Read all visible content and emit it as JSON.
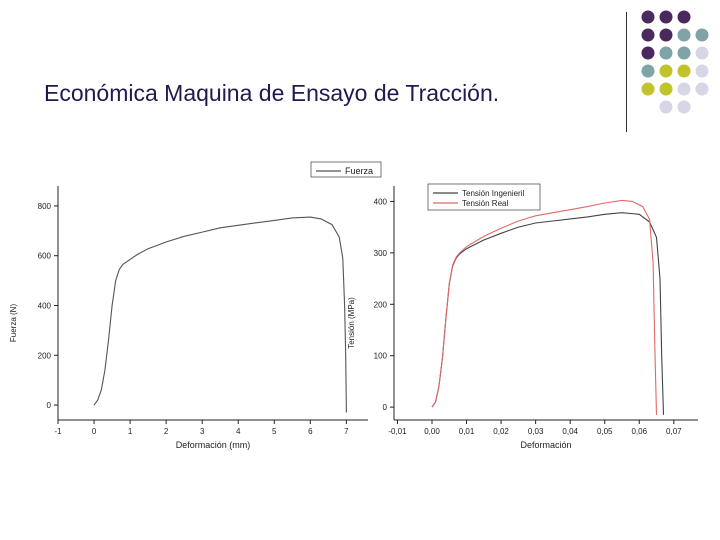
{
  "slide": {
    "title": "Económica Maquina de Ensayo de Tracción."
  },
  "decoration": {
    "dot_colors": {
      "purple": "#4a2a5e",
      "teal": "#7fa3a6",
      "olive": "#c2c22a",
      "lavender": "#d6d6e6"
    },
    "dot_grid": [
      [
        "purple",
        "purple",
        "purple",
        "none"
      ],
      [
        "purple",
        "purple",
        "teal",
        "teal"
      ],
      [
        "purple",
        "teal",
        "teal",
        "lavender"
      ],
      [
        "teal",
        "olive",
        "olive",
        "lavender"
      ],
      [
        "olive",
        "olive",
        "lavender",
        "lavender"
      ],
      [
        "none",
        "lavender",
        "lavender",
        "none"
      ]
    ]
  },
  "chart_data": [
    {
      "type": "line",
      "xlabel": "Deformación (mm)",
      "ylabel": "Fuerza (N)",
      "xlim": [
        -1,
        7.6
      ],
      "ylim": [
        -60,
        880
      ],
      "xticks": [
        "-1",
        "0",
        "1",
        "2",
        "3",
        "4",
        "5",
        "6",
        "7"
      ],
      "yticks": [
        "0",
        "200",
        "400",
        "600",
        "800"
      ],
      "legend": "top-right",
      "series": [
        {
          "name": "Fuerza",
          "color": "#555555",
          "points": [
            [
              0,
              0
            ],
            [
              0.1,
              20
            ],
            [
              0.2,
              60
            ],
            [
              0.3,
              140
            ],
            [
              0.4,
              260
            ],
            [
              0.5,
              400
            ],
            [
              0.6,
              500
            ],
            [
              0.7,
              545
            ],
            [
              0.8,
              565
            ],
            [
              1.0,
              585
            ],
            [
              1.2,
              605
            ],
            [
              1.5,
              628
            ],
            [
              2.0,
              655
            ],
            [
              2.5,
              678
            ],
            [
              3.0,
              695
            ],
            [
              3.5,
              712
            ],
            [
              4.0,
              722
            ],
            [
              4.5,
              732
            ],
            [
              5.0,
              742
            ],
            [
              5.5,
              752
            ],
            [
              6.0,
              755
            ],
            [
              6.3,
              748
            ],
            [
              6.6,
              725
            ],
            [
              6.8,
              675
            ],
            [
              6.9,
              590
            ],
            [
              6.95,
              400
            ],
            [
              6.98,
              200
            ],
            [
              7.0,
              -30
            ]
          ]
        }
      ]
    },
    {
      "type": "line",
      "xlabel": "Deformación",
      "ylabel": "Tensión (MPa)",
      "xlim": [
        -0.011,
        0.077
      ],
      "ylim": [
        -25,
        430
      ],
      "xticks": [
        "-0,01",
        "0,00",
        "0,01",
        "0,02",
        "0,03",
        "0,04",
        "0,05",
        "0,06",
        "0,07"
      ],
      "yticks": [
        "0",
        "100",
        "200",
        "300",
        "400"
      ],
      "legend": "top-left",
      "series": [
        {
          "name": "Tensión Ingenieril",
          "color": "#444444",
          "points": [
            [
              0,
              0
            ],
            [
              0.001,
              10
            ],
            [
              0.002,
              40
            ],
            [
              0.003,
              95
            ],
            [
              0.004,
              170
            ],
            [
              0.005,
              240
            ],
            [
              0.006,
              275
            ],
            [
              0.007,
              290
            ],
            [
              0.008,
              298
            ],
            [
              0.01,
              308
            ],
            [
              0.015,
              325
            ],
            [
              0.02,
              338
            ],
            [
              0.025,
              350
            ],
            [
              0.03,
              358
            ],
            [
              0.035,
              362
            ],
            [
              0.04,
              366
            ],
            [
              0.045,
              370
            ],
            [
              0.05,
              375
            ],
            [
              0.055,
              378
            ],
            [
              0.06,
              375
            ],
            [
              0.063,
              360
            ],
            [
              0.065,
              330
            ],
            [
              0.066,
              250
            ],
            [
              0.0665,
              100
            ],
            [
              0.067,
              -15
            ]
          ]
        },
        {
          "name": "Tensión Real",
          "color": "#e06a6a",
          "points": [
            [
              0,
              0
            ],
            [
              0.001,
              10
            ],
            [
              0.002,
              40
            ],
            [
              0.003,
              95
            ],
            [
              0.004,
              170
            ],
            [
              0.005,
              240
            ],
            [
              0.006,
              277
            ],
            [
              0.007,
              292
            ],
            [
              0.008,
              300
            ],
            [
              0.01,
              312
            ],
            [
              0.015,
              332
            ],
            [
              0.02,
              348
            ],
            [
              0.025,
              362
            ],
            [
              0.03,
              372
            ],
            [
              0.035,
              378
            ],
            [
              0.04,
              384
            ],
            [
              0.045,
              390
            ],
            [
              0.05,
              397
            ],
            [
              0.055,
              402
            ],
            [
              0.058,
              400
            ],
            [
              0.061,
              390
            ],
            [
              0.063,
              365
            ],
            [
              0.064,
              280
            ],
            [
              0.0645,
              120
            ],
            [
              0.065,
              -15
            ]
          ]
        }
      ]
    }
  ]
}
